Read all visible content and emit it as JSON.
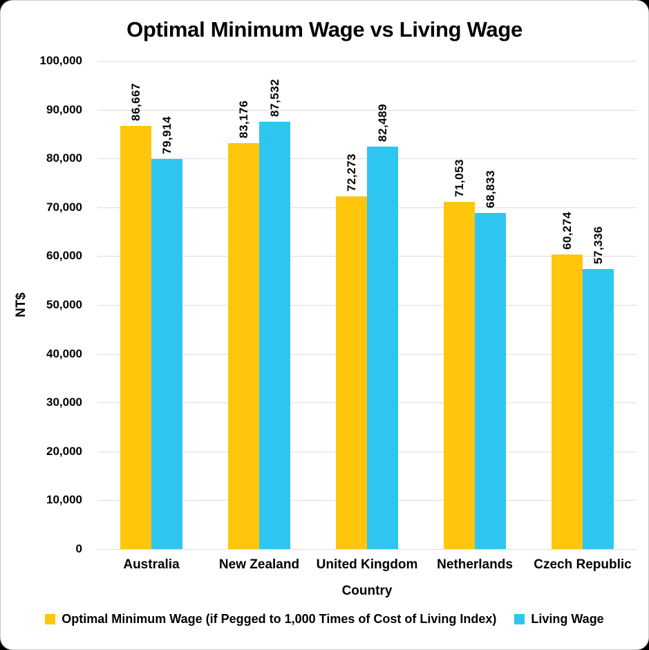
{
  "title": "Optimal Minimum Wage vs Living Wage",
  "chart_data": {
    "type": "bar",
    "title": "Optimal Minimum Wage vs Living Wage",
    "categories": [
      "Australia",
      "New Zealand",
      "United Kingdom",
      "Netherlands",
      "Czech Republic"
    ],
    "series": [
      {
        "name": "Optimal Minimum Wage (if Pegged to 1,000 Times of Cost of Living Index)",
        "color": "#FFC60B",
        "values": [
          86667,
          83176,
          72273,
          71053,
          60274
        ],
        "labels": [
          "86,667",
          "83,176",
          "72,273",
          "71,053",
          "60,274"
        ]
      },
      {
        "name": "Living Wage",
        "color": "#2EC6F0",
        "values": [
          79914,
          87532,
          82489,
          68833,
          57336
        ],
        "labels": [
          "79,914",
          "87,532",
          "82,489",
          "68,833",
          "57,336"
        ]
      }
    ],
    "xlabel": "Country",
    "ylabel": "NT$",
    "ylim": [
      0,
      100000
    ],
    "ytick_step": 10000,
    "yticks": [
      "0",
      "10,000",
      "20,000",
      "30,000",
      "40,000",
      "50,000",
      "60,000",
      "70,000",
      "80,000",
      "90,000",
      "100,000"
    ],
    "grid": true,
    "legend_position": "bottom"
  }
}
